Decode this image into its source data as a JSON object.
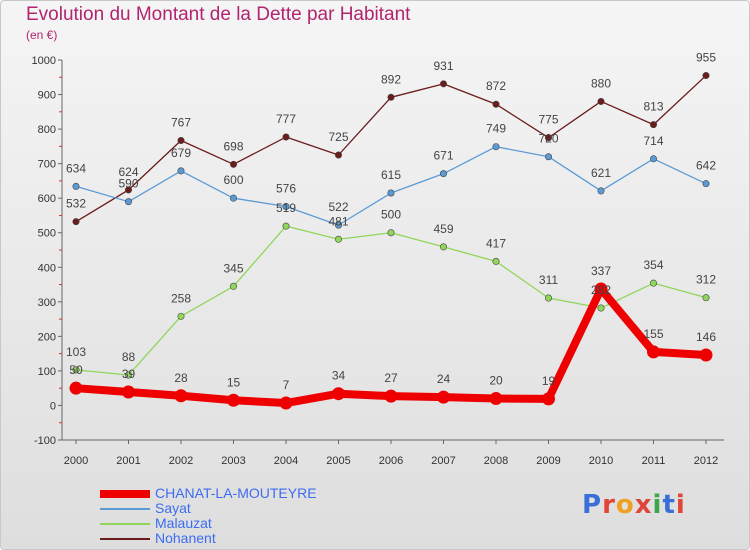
{
  "header": {
    "title": "Evolution du Montant de la Dette par Habitant",
    "subtitle": "(en €)"
  },
  "brand": {
    "text": "Proxiti",
    "colors": [
      "#3a6fd8",
      "#e0453a",
      "#f0a020",
      "#e0453a",
      "#3aa84a",
      "#3a6fd8",
      "#e0453a"
    ]
  },
  "chart_data": {
    "type": "line",
    "title": "Evolution du Montant de la Dette par Habitant",
    "subtitle": "(en €)",
    "xlabel": "",
    "ylabel": "",
    "x": [
      "2000",
      "2001",
      "2002",
      "2003",
      "2004",
      "2005",
      "2006",
      "2007",
      "2008",
      "2009",
      "2010",
      "2011",
      "2012"
    ],
    "ylim": [
      -100,
      1000
    ],
    "yticks": [
      -100,
      0,
      100,
      200,
      300,
      400,
      500,
      600,
      700,
      800,
      900,
      1000
    ],
    "grid": false,
    "legend_position": "bottom-left",
    "series": [
      {
        "name": "CHANAT-LA-MOUTEYRE",
        "color": "#ee0000",
        "values": [
          50,
          39,
          28,
          15,
          7,
          34,
          27,
          24,
          20,
          19,
          337,
          155,
          146
        ],
        "labels": [
          "50",
          "39",
          "28",
          "15",
          "7",
          "34",
          "27",
          "24",
          "20",
          "19",
          "337",
          "155",
          "146"
        ]
      },
      {
        "name": "Sayat",
        "color": "#5b9bd5",
        "values": [
          634,
          590,
          679,
          600,
          576,
          522,
          615,
          671,
          749,
          720,
          621,
          714,
          642
        ],
        "labels": [
          "634",
          "590",
          "679",
          "600",
          "576",
          "522",
          "615",
          "671",
          "749",
          "720",
          "621",
          "714",
          "642"
        ]
      },
      {
        "name": "Malauzat",
        "color": "#8fd65a",
        "values": [
          103,
          88,
          258,
          345,
          519,
          481,
          500,
          459,
          417,
          311,
          282,
          354,
          312
        ],
        "labels": [
          "103",
          "88",
          "258",
          "345",
          "519",
          "481",
          "500",
          "459",
          "417",
          "311",
          "282",
          "354",
          "312"
        ]
      },
      {
        "name": "Nohanent",
        "color": "#6b1c1c",
        "values": [
          532,
          624,
          767,
          698,
          777,
          725,
          892,
          931,
          872,
          775,
          880,
          813,
          955
        ],
        "labels": [
          "532",
          "624",
          "767",
          "698",
          "777",
          "725",
          "892",
          "931",
          "872",
          "775",
          "880",
          "813",
          "955"
        ]
      }
    ]
  }
}
